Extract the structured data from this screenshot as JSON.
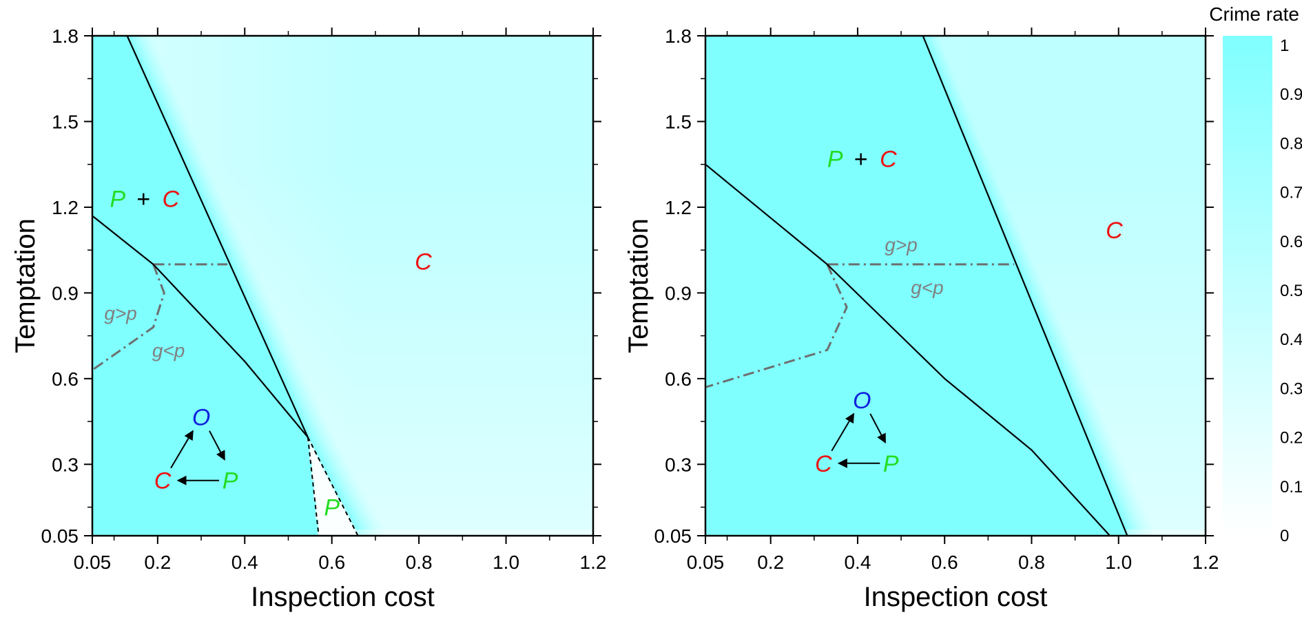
{
  "colors": {
    "crime_high": "#80FFFF",
    "crime_low": "#FFFFFF",
    "P": "#22DD22",
    "C": "#EE1111",
    "O": "#1122DD",
    "plus": "#000000",
    "condition": "#808080",
    "boundary": "#000000"
  },
  "colorbar": {
    "title": "Crime rate",
    "ticks": [
      "1",
      "0.9",
      "0.8",
      "0.7",
      "0.6",
      "0.5",
      "0.4",
      "0.3",
      "0.2",
      "0.1",
      "0"
    ],
    "range": [
      0,
      1
    ]
  },
  "chart_data": [
    {
      "type": "heatmap",
      "panel": "left",
      "xlabel": "Inspection cost",
      "ylabel": "Temptation",
      "xlim": [
        0.05,
        1.2
      ],
      "ylim": [
        0.05,
        1.8
      ],
      "xticks": [
        "0.05",
        "0.2",
        "0.4",
        "0.6",
        "0.8",
        "1.0",
        "1.2"
      ],
      "xtick_values": [
        0.05,
        0.2,
        0.4,
        0.6,
        0.8,
        1.0,
        1.2
      ],
      "yticks": [
        "0.05",
        "0.3",
        "0.6",
        "0.9",
        "1.2",
        "1.5",
        "1.8"
      ],
      "ytick_values": [
        0.05,
        0.3,
        0.6,
        0.9,
        1.2,
        1.5,
        1.8
      ],
      "regions": [
        {
          "text": "C",
          "color": "C",
          "x": 0.81,
          "y": 1.01
        },
        {
          "text": "P",
          "color": "P",
          "x": 0.6,
          "y": 0.15
        }
      ],
      "mixed_label": {
        "p": "P",
        "plus": "+",
        "c": "C",
        "x": 0.17,
        "y": 1.23
      },
      "solid_lines": [
        [
          [
            0.13,
            1.8
          ],
          [
            0.545,
            0.395
          ]
        ],
        [
          [
            0.05,
            1.17
          ],
          [
            0.19,
            1.0
          ],
          [
            0.4,
            0.66
          ],
          [
            0.545,
            0.395
          ]
        ]
      ],
      "dashed_lines": [
        [
          [
            0.545,
            0.395
          ],
          [
            0.57,
            0.05
          ]
        ],
        [
          [
            0.545,
            0.395
          ],
          [
            0.66,
            0.05
          ]
        ]
      ],
      "dashdot_lines": [
        [
          [
            0.19,
            1.0
          ],
          [
            0.36,
            1.0
          ]
        ],
        [
          [
            0.19,
            1.0
          ],
          [
            0.215,
            0.9
          ],
          [
            0.19,
            0.78
          ],
          [
            0.05,
            0.63
          ]
        ]
      ],
      "conditions": [
        {
          "text": "g>p",
          "x": 0.115,
          "y": 0.83
        },
        {
          "text": "g<p",
          "x": 0.225,
          "y": 0.7
        }
      ],
      "diagram": {
        "o": "O",
        "c": "C",
        "p": "P",
        "x": 0.3,
        "y": 0.34
      },
      "field": {
        "line": [
          [
            0.13,
            1.8
          ],
          [
            0.545,
            0.395
          ],
          [
            0.66,
            0.05
          ]
        ],
        "lowX": 0.12,
        "lowY": 0.55,
        "pocket": true
      }
    },
    {
      "type": "heatmap",
      "panel": "right",
      "xlabel": "Inspection cost",
      "ylabel": "Temptation",
      "xlim": [
        0.05,
        1.2
      ],
      "ylim": [
        0.05,
        1.8
      ],
      "xticks": [
        "0.05",
        "0.2",
        "0.4",
        "0.6",
        "0.8",
        "1.0",
        "1.2"
      ],
      "xtick_values": [
        0.05,
        0.2,
        0.4,
        0.6,
        0.8,
        1.0,
        1.2
      ],
      "yticks": [
        "0.05",
        "0.3",
        "0.6",
        "0.9",
        "1.2",
        "1.5",
        "1.8"
      ],
      "ytick_values": [
        0.05,
        0.3,
        0.6,
        0.9,
        1.2,
        1.5,
        1.8
      ],
      "regions": [
        {
          "text": "C",
          "color": "C",
          "x": 0.99,
          "y": 1.12
        }
      ],
      "mixed_label": {
        "p": "P",
        "plus": "+",
        "c": "C",
        "x": 0.41,
        "y": 1.37
      },
      "solid_lines": [
        [
          [
            0.55,
            1.8
          ],
          [
            1.02,
            0.05
          ]
        ],
        [
          [
            0.05,
            1.35
          ],
          [
            0.33,
            1.0
          ],
          [
            0.6,
            0.6
          ],
          [
            0.8,
            0.35
          ],
          [
            0.98,
            0.05
          ]
        ]
      ],
      "dashed_lines": [],
      "dashdot_lines": [
        [
          [
            0.33,
            1.0
          ],
          [
            0.76,
            1.0
          ]
        ],
        [
          [
            0.33,
            1.0
          ],
          [
            0.375,
            0.85
          ],
          [
            0.33,
            0.7
          ],
          [
            0.05,
            0.57
          ]
        ]
      ],
      "conditions": [
        {
          "text": "g>p",
          "x": 0.5,
          "y": 1.07
        },
        {
          "text": "g<p",
          "x": 0.56,
          "y": 0.92
        }
      ],
      "diagram": {
        "o": "O",
        "c": "C",
        "p": "P",
        "x": 0.41,
        "y": 0.4
      },
      "field": {
        "line": [
          [
            0.55,
            1.8
          ],
          [
            1.02,
            0.05
          ]
        ],
        "lowX": 0.1,
        "lowY": 0.55,
        "pocket": false
      }
    }
  ]
}
